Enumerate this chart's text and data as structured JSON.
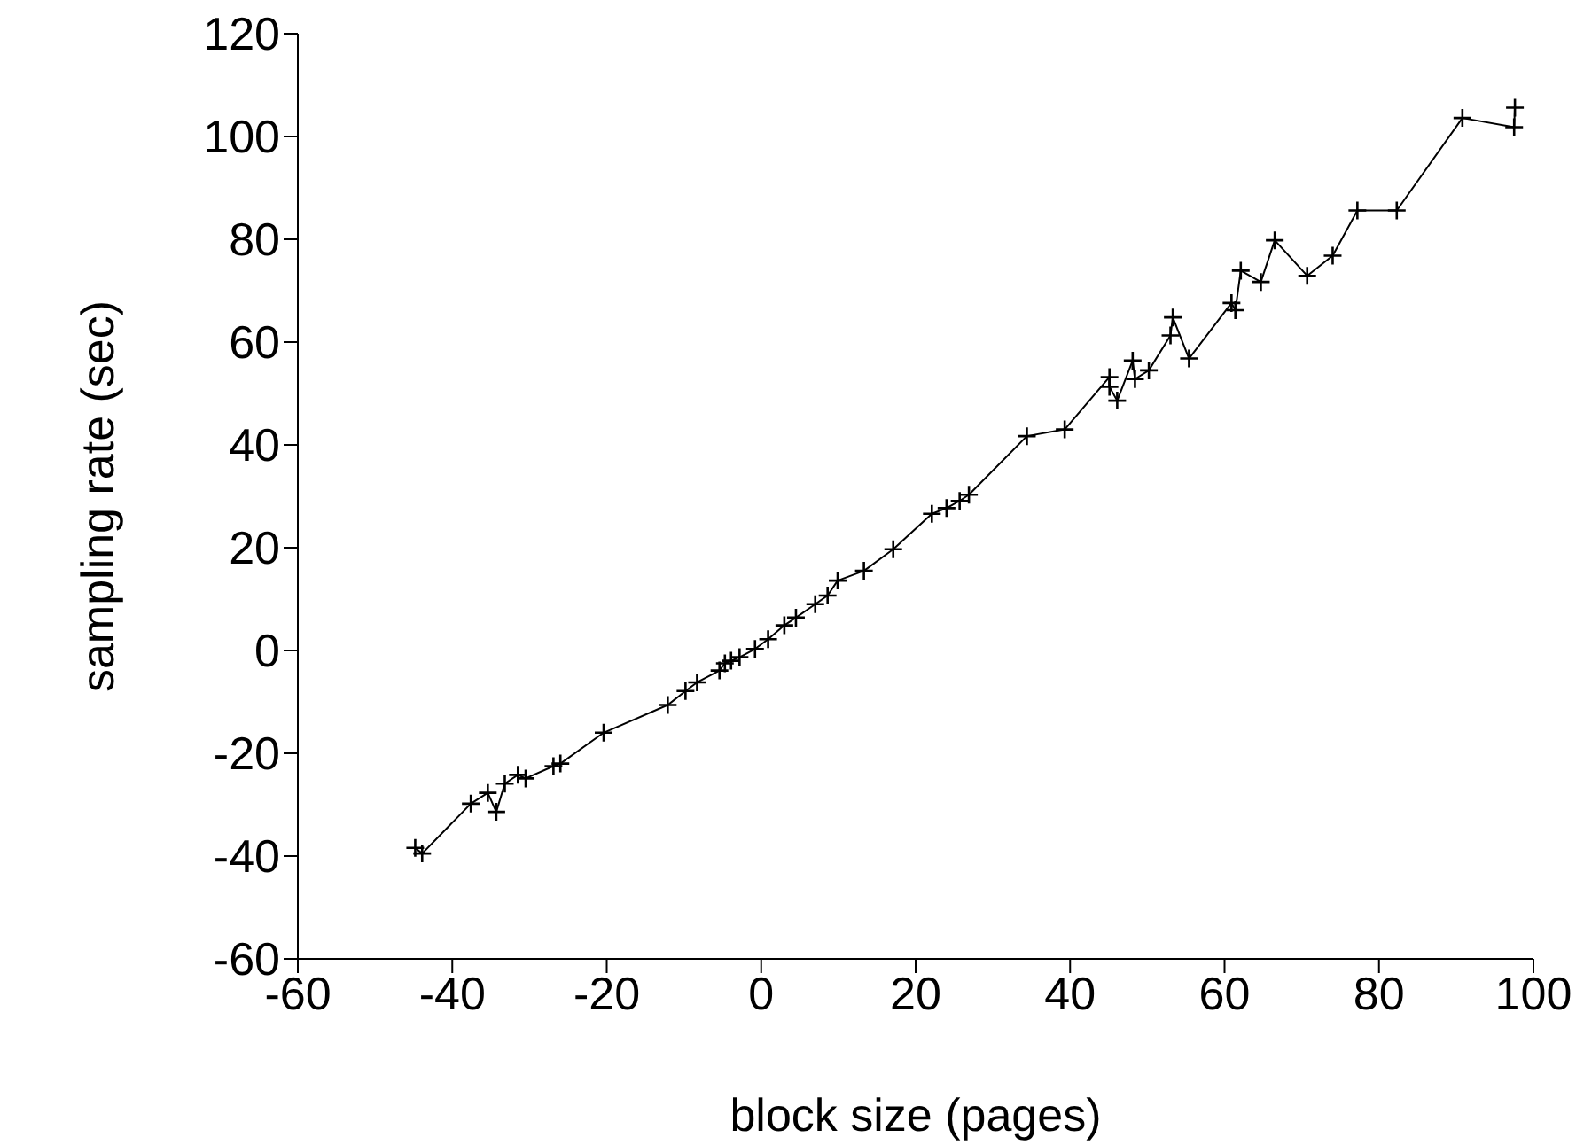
{
  "chart_data": {
    "type": "line",
    "xlabel": "block size (pages)",
    "ylabel": "sampling rate (sec)",
    "x": [
      -44.8,
      -43.9,
      -37.6,
      -35.4,
      -34.3,
      -33.2,
      -31.5,
      -30.5,
      -26.9,
      -26.0,
      -20.4,
      -12.1,
      -9.8,
      -8.3,
      -5.4,
      -4.7,
      -3.9,
      -2.8,
      -0.8,
      0.9,
      3.0,
      4.5,
      7.0,
      8.6,
      9.9,
      13.3,
      17.1,
      22.1,
      24.0,
      25.7,
      26.9,
      34.4,
      39.3,
      45.1,
      45.1,
      46.1,
      48.1,
      48.4,
      50.2,
      53.0,
      53.3,
      55.4,
      60.9,
      61.4,
      62.1,
      64.7,
      66.5,
      70.7,
      74.0,
      77.2,
      82.3,
      90.8,
      97.5,
      97.6
    ],
    "series": [
      {
        "color": "#000000",
        "values": [
          -38.4,
          -39.5,
          -29.8,
          -27.7,
          -31.4,
          -25.9,
          -24.2,
          -24.9,
          -22.5,
          -22.0,
          -16.0,
          -10.6,
          -7.9,
          -6.2,
          -3.9,
          -2.5,
          -2.0,
          -1.3,
          0.3,
          2.2,
          4.9,
          6.4,
          9.0,
          10.7,
          13.6,
          15.5,
          19.7,
          26.6,
          27.7,
          29.1,
          30.3,
          41.7,
          43.0,
          53.2,
          51.3,
          48.6,
          56.4,
          52.8,
          54.5,
          61.3,
          64.8,
          56.8,
          67.6,
          66.2,
          73.9,
          71.7,
          79.8,
          72.9,
          76.8,
          85.6,
          85.6,
          103.6,
          101.8,
          105.6
        ]
      }
    ],
    "xlim": [
      -60,
      100
    ],
    "xticks": [
      -60,
      -40,
      -20,
      0,
      20,
      40,
      60,
      80,
      100
    ],
    "ylim": [
      -60,
      120
    ],
    "yticks": [
      -60,
      -40,
      -20,
      0,
      20,
      40,
      60,
      80,
      100,
      120
    ],
    "marker": "cross",
    "line_style": "solid",
    "grid": false,
    "legend": false
  }
}
